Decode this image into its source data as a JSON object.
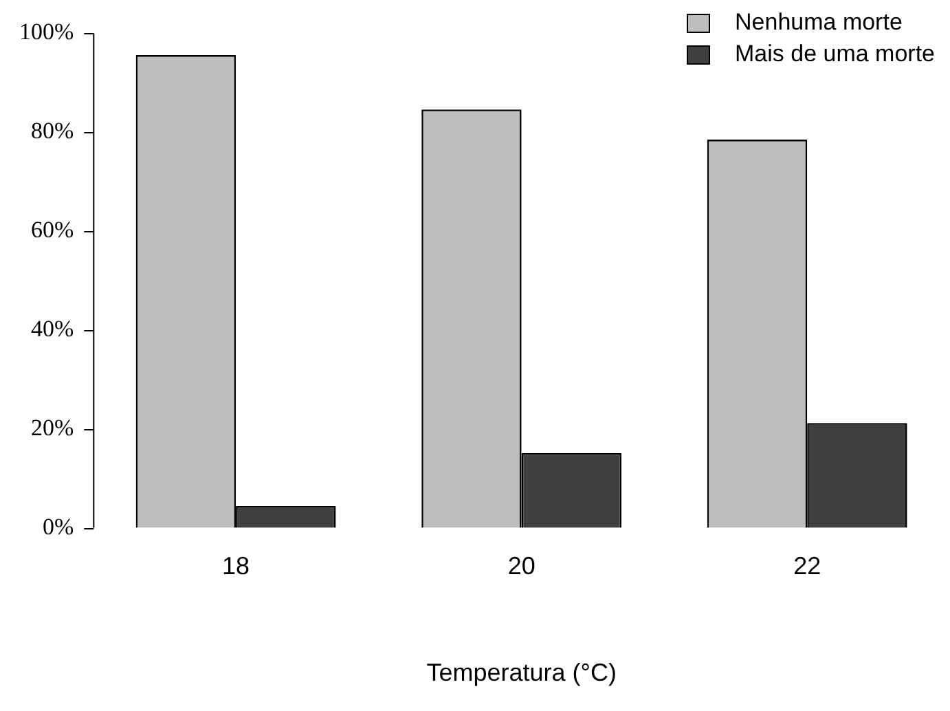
{
  "chart_data": {
    "type": "bar",
    "xlabel": "Temperatura (°C)",
    "categories": [
      "18",
      "20",
      "22"
    ],
    "series": [
      {
        "name": "Nenhuma morte",
        "color": "#bebebe",
        "values": [
          95.6,
          84.6,
          78.5
        ]
      },
      {
        "name": "Mais de uma morte",
        "color": "#404040",
        "values": [
          4.4,
          15.1,
          21.2
        ]
      }
    ],
    "ylim": [
      0,
      100
    ],
    "yticks": [
      {
        "value": 0,
        "label": "0%"
      },
      {
        "value": 20,
        "label": "20%"
      },
      {
        "value": 40,
        "label": "40%"
      },
      {
        "value": 60,
        "label": "60%"
      },
      {
        "value": 80,
        "label": "80%"
      },
      {
        "value": 100,
        "label": "100%"
      }
    ],
    "grid": false,
    "legend": "top right"
  }
}
